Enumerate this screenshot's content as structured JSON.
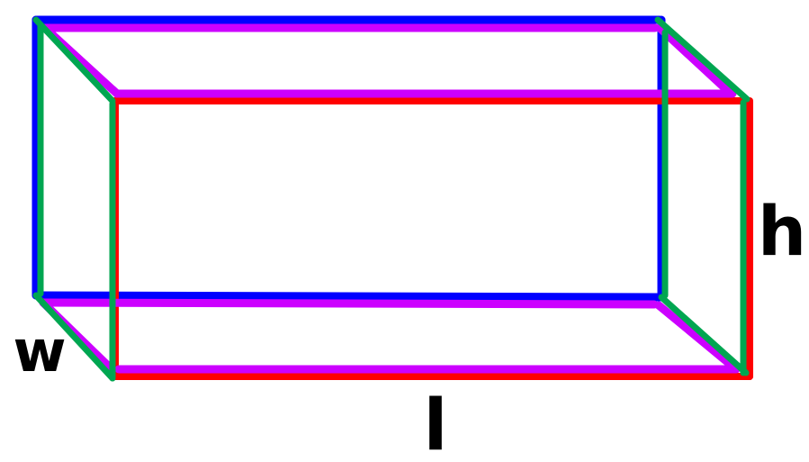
{
  "labels": {
    "width": "w",
    "height": "h",
    "length": "l"
  },
  "colors": {
    "back_face": "#0000ff",
    "front_face": "#ff0000",
    "horizontal_edges": "#cc00ff",
    "vertical_and_depth_edges": "#00a651",
    "label": "#000000",
    "background": "#ffffff"
  }
}
